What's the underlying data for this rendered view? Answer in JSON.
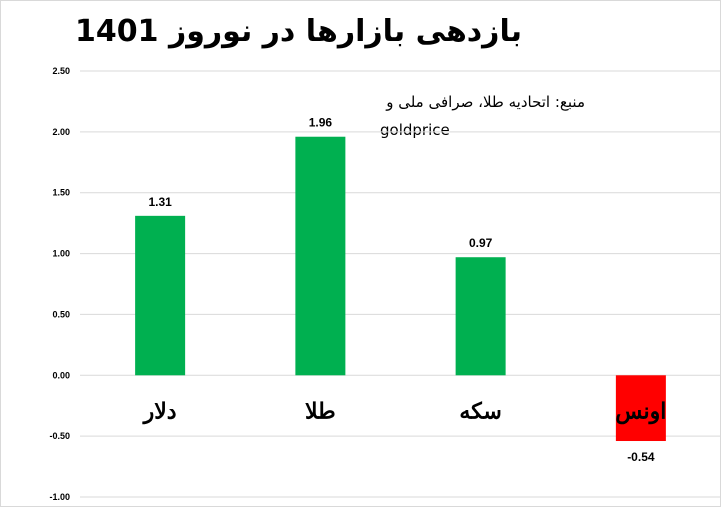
{
  "title": "بازدهی بازارها در نوروز 1401",
  "source": {
    "line1": "منبع: اتحادیه طلا، صرافی ملی و",
    "line2": "goldprice"
  },
  "colors": {
    "positive": "#00b050",
    "negative": "#ff0000",
    "grid": "#d9d9d9",
    "text": "#000000"
  },
  "chart_data": {
    "type": "bar",
    "categories": [
      "دلار",
      "طلا",
      "سکه",
      "اونس"
    ],
    "values": [
      1.31,
      1.96,
      0.97,
      -0.54
    ],
    "data_labels": [
      "1.31",
      "1.96",
      "0.97",
      "-0.54"
    ],
    "ylim": [
      -1.0,
      2.5
    ],
    "yticks": [
      "-1.00",
      "-0.50",
      "0.00",
      "0.50",
      "1.00",
      "1.50",
      "2.00",
      "2.50"
    ],
    "grid": true,
    "legend": "none"
  }
}
